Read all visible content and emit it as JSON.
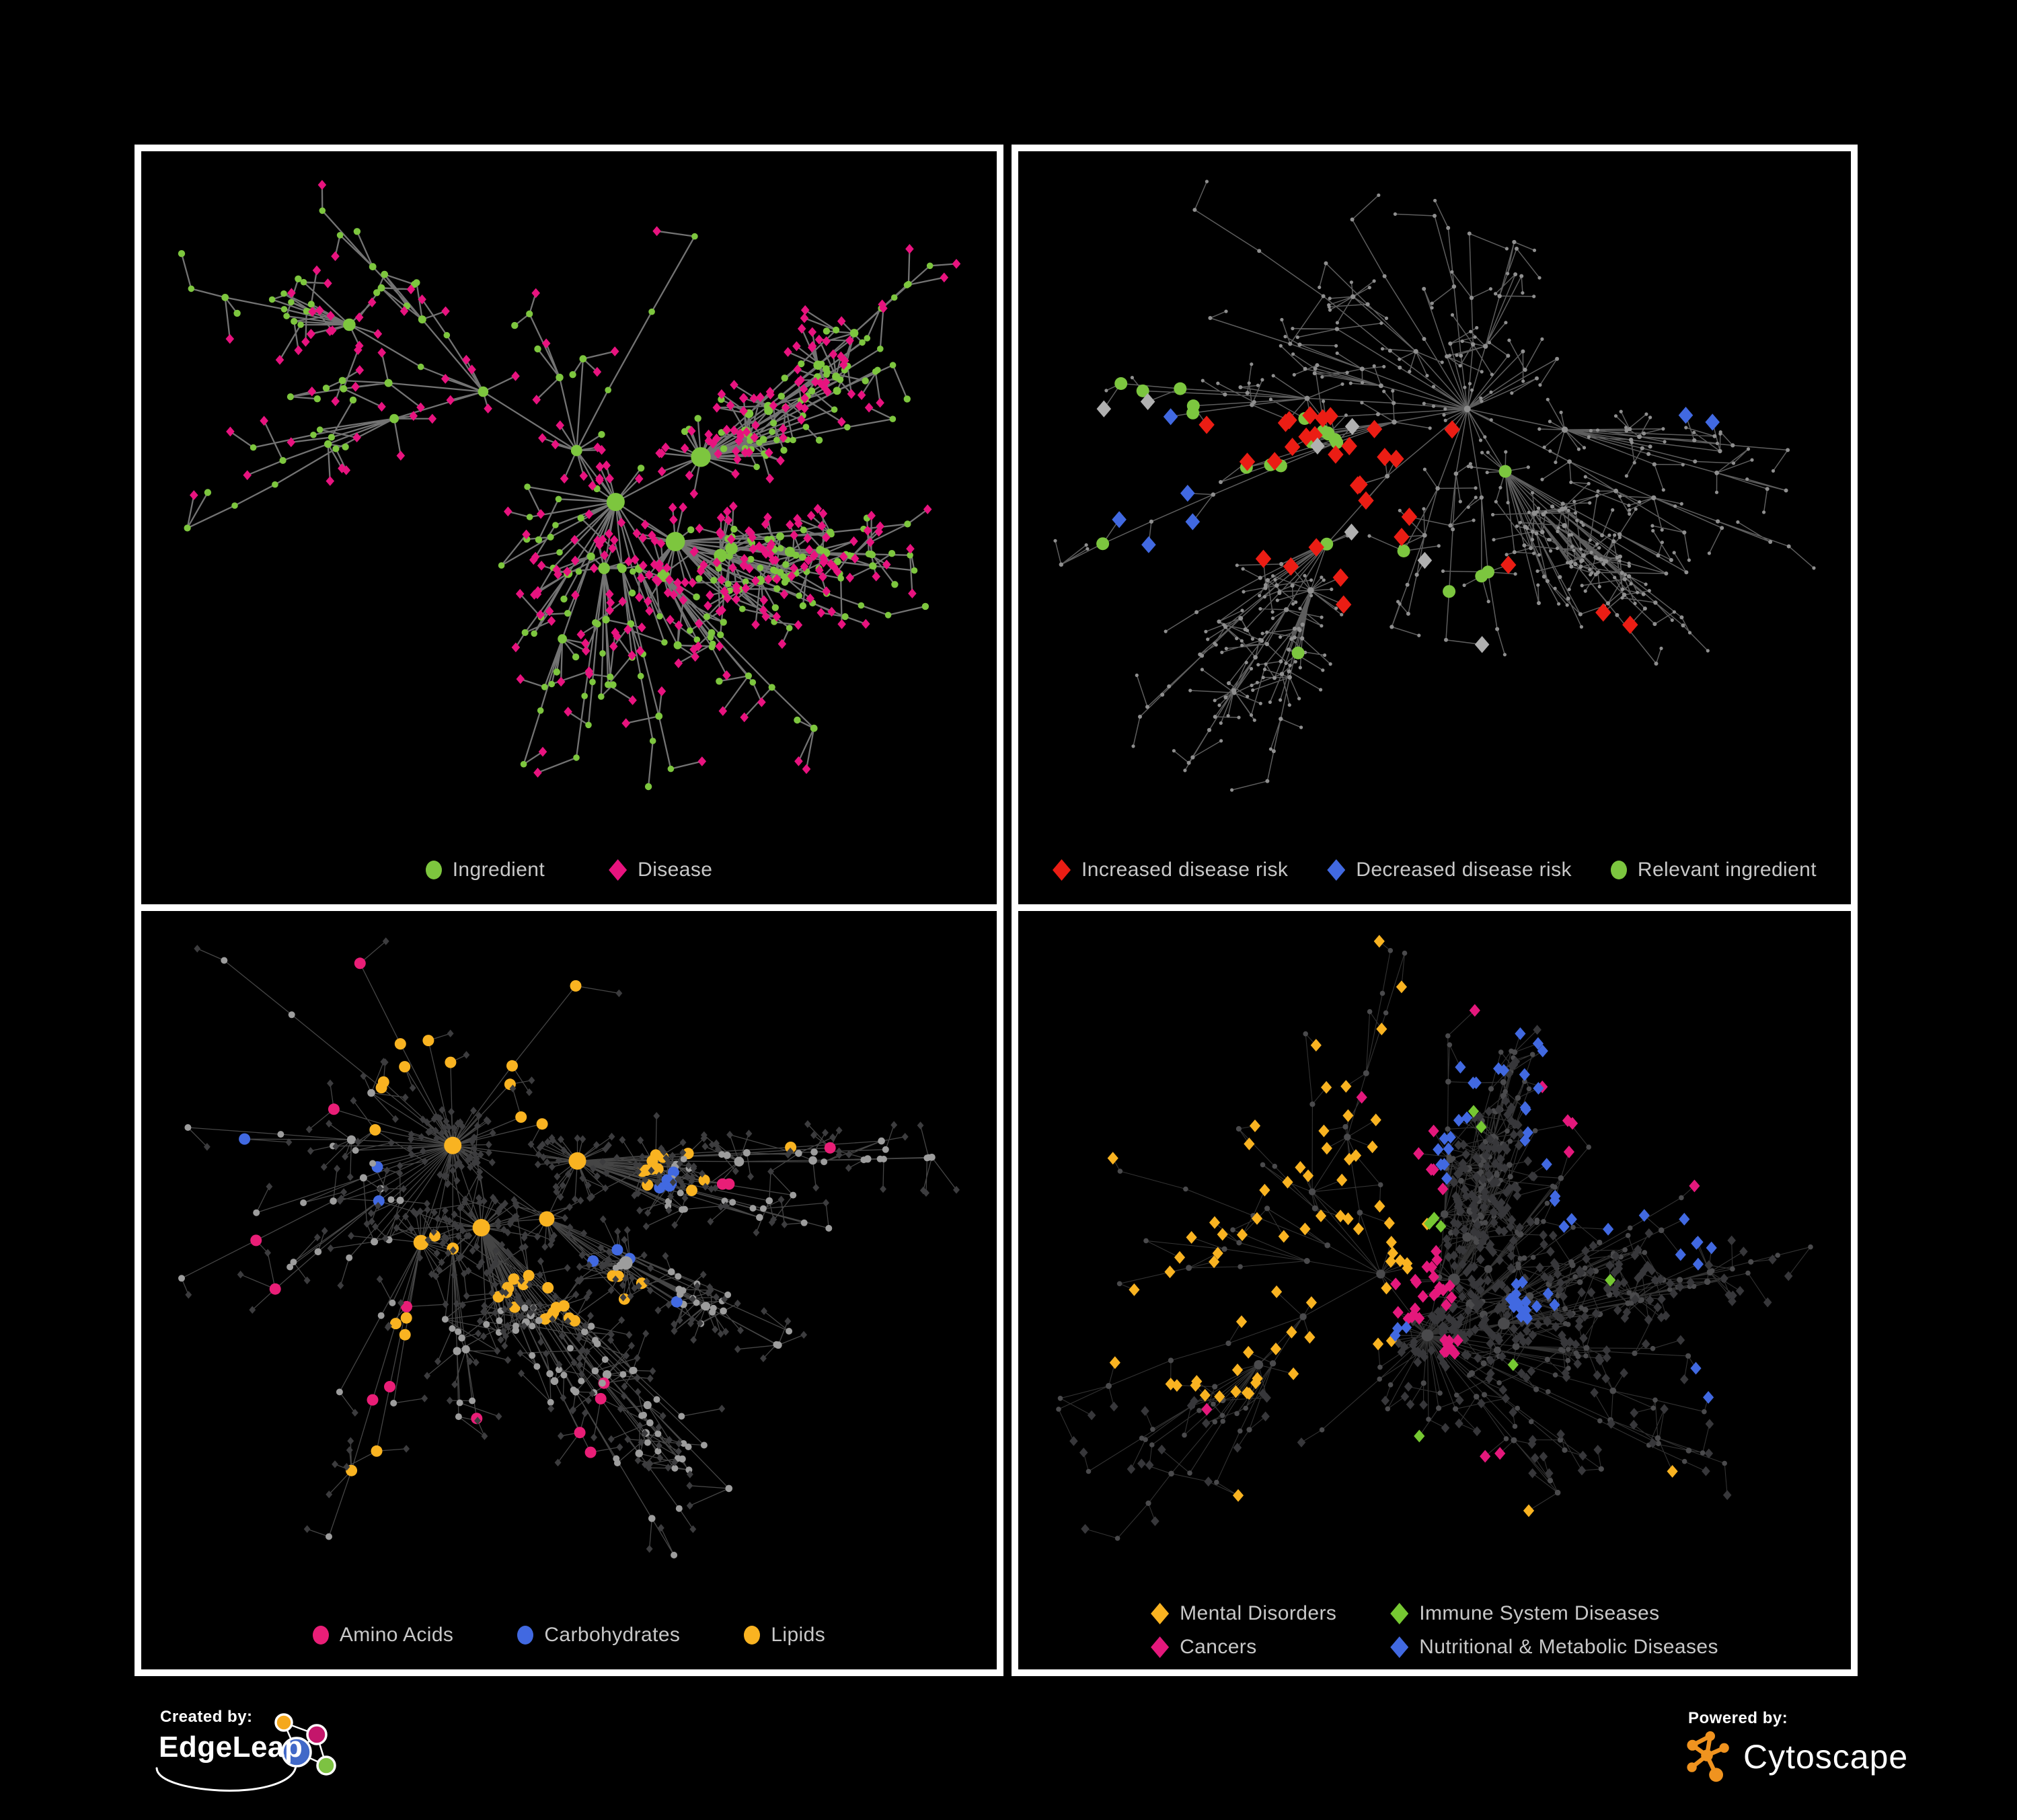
{
  "canvas": {
    "background": "#000000",
    "frame_color": "#ffffff",
    "legend_text_color": "#c8c8c8"
  },
  "footer": {
    "created_by_label": "Created by:",
    "brand": "EdgeLeap",
    "powered_by_label": "Powered by:",
    "engine": "Cytoscape",
    "cytoscape_orange": "#f0931f",
    "edgeleap_colors": {
      "orange": "#f5a81c",
      "magenta": "#c4166b",
      "blue": "#4169c8",
      "green": "#7dc242"
    }
  },
  "panels": [
    {
      "name": "ingredient-disease-network",
      "legend": [
        {
          "label": "Ingredient",
          "shape": "circle",
          "color": "#7dc63e"
        },
        {
          "label": "Disease",
          "shape": "diamond",
          "color": "#e8137f"
        }
      ],
      "net": {
        "seed": 11,
        "nodes": 640,
        "alpha": 1.08,
        "step": 170,
        "decay": 0.85,
        "leafLen": 55,
        "extraEdges": 26,
        "extraDist": 0.07,
        "pad": [
          60,
          50,
          60,
          175
        ],
        "edge": {
          "color": "#797979",
          "width": 2.3,
          "opacity": 0.95
        },
        "style": "typed",
        "typed": {
          "circleColor": "#7dc63e",
          "diamondColor": "#e8137f",
          "rBase": 4.2,
          "rPerDeg": 0.3,
          "rMax": 15,
          "dSize": 7,
          "leafCircleP": 0.17,
          "leafCircleR": 5.2
        }
      }
    },
    {
      "name": "disease-risk-network",
      "legend": [
        {
          "label": "Increased disease risk",
          "shape": "diamond",
          "color": "#eb1d14"
        },
        {
          "label": "Decreased disease risk",
          "shape": "diamond",
          "color": "#4169e1"
        },
        {
          "label": "Relevant ingredient",
          "shape": "circle",
          "color": "#7cc63f"
        }
      ],
      "net": {
        "seed": 29,
        "nodes": 620,
        "alpha": 1.02,
        "step": 185,
        "decay": 0.87,
        "leafLen": 58,
        "extraEdges": 30,
        "extraDist": 0.09,
        "pad": [
          55,
          45,
          55,
          170
        ],
        "edge": {
          "color": "#6d6d6d",
          "width": 1.5,
          "opacity": 0.85
        },
        "style": "dim",
        "dim": {
          "baseColor": "#8f8f8f",
          "leafR": 2.6,
          "rBase": 2.8,
          "rPerDeg": 0.1,
          "rMax": 5
        },
        "groups": [
          {
            "shape": "d",
            "size": 13,
            "color": "#eb1d14",
            "on": "leaf",
            "pts": [
              [
                0.25,
                0.42,
                5
              ],
              [
                0.33,
                0.4,
                6
              ],
              [
                0.38,
                0.5,
                5
              ],
              [
                0.3,
                0.55,
                3
              ],
              [
                0.42,
                0.44,
                3
              ],
              [
                0.47,
                0.57,
                2
              ],
              [
                0.52,
                0.44,
                1
              ],
              [
                0.4,
                0.67,
                2
              ],
              [
                0.58,
                0.63,
                1
              ],
              [
                0.73,
                0.77,
                1
              ],
              [
                0.7,
                0.7,
                1
              ]
            ]
          },
          {
            "shape": "d",
            "size": 12,
            "color": "#4169e1",
            "on": "leaf",
            "pts": [
              [
                0.185,
                0.47,
                2
              ],
              [
                0.16,
                0.54,
                2
              ],
              [
                0.22,
                0.44,
                1
              ],
              [
                0.84,
                0.33,
                2
              ]
            ]
          },
          {
            "shape": "d",
            "size": 12,
            "color": "#b0b0b0",
            "on": "leaf",
            "pts": [
              [
                0.155,
                0.43,
                1
              ],
              [
                0.24,
                0.47,
                1
              ],
              [
                0.345,
                0.47,
                1
              ],
              [
                0.4,
                0.58,
                1
              ],
              [
                0.47,
                0.62,
                1
              ],
              [
                0.56,
                0.73,
                1
              ],
              [
                0.145,
                0.4,
                1
              ]
            ]
          },
          {
            "shape": "c",
            "size": 9.5,
            "color": "#7cc63f",
            "on": "int",
            "pts": [
              [
                0.14,
                0.4,
                2
              ],
              [
                0.17,
                0.37,
                1
              ],
              [
                0.28,
                0.46,
                4
              ],
              [
                0.35,
                0.46,
                6
              ],
              [
                0.38,
                0.56,
                2
              ],
              [
                0.55,
                0.66,
                3
              ],
              [
                0.33,
                0.78,
                1
              ],
              [
                0.12,
                0.63,
                1
              ],
              [
                0.63,
                0.48,
                1
              ],
              [
                0.1,
                0.33,
                2
              ]
            ]
          }
        ]
      }
    },
    {
      "name": "nutrient-class-network",
      "legend": [
        {
          "label": "Amino Acids",
          "shape": "circle",
          "color": "#e91e77"
        },
        {
          "label": "Carbohydrates",
          "shape": "circle",
          "color": "#4169e1"
        },
        {
          "label": "Lipids",
          "shape": "circle",
          "color": "#f9b321"
        }
      ],
      "net": {
        "seed": 47,
        "nodes": 760,
        "alpha": 1.22,
        "step": 175,
        "decay": 0.86,
        "leafLen": 48,
        "extraEdges": 110,
        "extraDist": 0.085,
        "pad": [
          60,
          45,
          60,
          170
        ],
        "edge": {
          "color": "#9a9a9a",
          "width": 1.3,
          "opacity": 0.45
        },
        "style": "typed2",
        "typed2": {
          "circleColor": "#9d9d9d",
          "diamondColor": "#3c3c3e",
          "rBase": 4.5,
          "rPerDeg": 0.26,
          "rMax": 13,
          "dSize": 5.5,
          "hlMinR": 8.5
        },
        "groups": [
          {
            "shape": "c",
            "color": "#f9b321",
            "on": "int",
            "pts": [
              [
                0.46,
                0.37,
                14
              ],
              [
                0.41,
                0.48,
                12
              ],
              [
                0.5,
                0.6,
                7
              ],
              [
                0.57,
                0.57,
                4
              ],
              [
                0.42,
                0.2,
                4
              ],
              [
                0.33,
                0.28,
                3
              ],
              [
                0.63,
                0.22,
                2
              ],
              [
                0.3,
                0.65,
                3
              ],
              [
                0.66,
                0.4,
                2
              ],
              [
                0.2,
                0.8,
                2
              ],
              [
                0.74,
                0.16,
                1
              ],
              [
                0.45,
                0.05,
                2
              ]
            ]
          },
          {
            "shape": "c",
            "color": "#4169e1",
            "on": "int",
            "pts": [
              [
                0.475,
                0.36,
                5
              ],
              [
                0.5,
                0.42,
                3
              ],
              [
                0.36,
                0.33,
                1
              ],
              [
                0.62,
                0.6,
                1
              ],
              [
                0.07,
                0.3,
                1
              ],
              [
                0.25,
                0.42,
                1
              ]
            ]
          },
          {
            "shape": "c",
            "color": "#e91e77",
            "on": "int",
            "pts": [
              [
                0.08,
                0.52,
                1
              ],
              [
                0.14,
                0.6,
                1
              ],
              [
                0.24,
                0.74,
                2
              ],
              [
                0.38,
                0.84,
                1
              ],
              [
                0.47,
                0.88,
                2
              ],
              [
                0.56,
                0.74,
                2
              ],
              [
                0.43,
                0.05,
                1
              ],
              [
                0.2,
                0.28,
                1
              ],
              [
                0.7,
                0.4,
                2
              ],
              [
                0.86,
                0.32,
                1
              ],
              [
                0.3,
                0.55,
                1
              ]
            ]
          }
        ]
      }
    },
    {
      "name": "disease-class-network",
      "legend": [
        {
          "label": "Mental Disorders",
          "shape": "diamond",
          "color": "#f9b321"
        },
        {
          "label": "Immune System Diseases",
          "shape": "diamond",
          "color": "#76c832"
        },
        {
          "label": "Cancers",
          "shape": "diamond",
          "color": "#e4187c"
        },
        {
          "label": "Nutritional & Metabolic Diseases",
          "shape": "diamond",
          "color": "#4169e1"
        }
      ],
      "net": {
        "seed": 61,
        "nodes": 860,
        "alpha": 1.18,
        "step": 170,
        "decay": 0.86,
        "leafLen": 46,
        "extraEdges": 130,
        "extraDist": 0.085,
        "pad": [
          60,
          45,
          60,
          195
        ],
        "edge": {
          "color": "#9a9a9a",
          "width": 1.1,
          "opacity": 0.32
        },
        "style": "dark",
        "dark": {
          "circleColor": "#4a4a4c",
          "rBase": 3.4,
          "rPerDeg": 0.22,
          "rMax": 9,
          "diamondColor": "#37373a",
          "dSize": 7,
          "hlSize": 9
        },
        "groups": [
          {
            "shape": "d",
            "color": "#f9b321",
            "on": "leaf",
            "pts": [
              [
                0.18,
                0.5,
                55
              ],
              [
                0.28,
                0.44,
                8
              ],
              [
                0.32,
                0.1,
                3
              ],
              [
                0.12,
                0.1,
                2
              ],
              [
                0.4,
                0.7,
                2
              ],
              [
                0.3,
                0.92,
                1
              ],
              [
                0.55,
                0.95,
                1
              ],
              [
                0.8,
                0.9,
                1
              ]
            ]
          },
          {
            "shape": "d",
            "color": "#e4187c",
            "on": "leaf",
            "pts": [
              [
                0.465,
                0.57,
                22
              ],
              [
                0.52,
                0.68,
                9
              ],
              [
                0.43,
                0.42,
                4
              ],
              [
                0.37,
                0.3,
                2
              ],
              [
                0.88,
                0.23,
                5
              ],
              [
                0.58,
                0.9,
                2
              ],
              [
                0.23,
                0.76,
                1
              ],
              [
                0.48,
                0.05,
                1
              ]
            ]
          },
          {
            "shape": "d",
            "color": "#4169e1",
            "on": "leaf",
            "pts": [
              [
                0.63,
                0.6,
                16
              ],
              [
                0.72,
                0.42,
                7
              ],
              [
                0.78,
                0.32,
                5
              ],
              [
                0.85,
                0.52,
                5
              ],
              [
                0.68,
                0.24,
                4
              ],
              [
                0.5,
                0.38,
                3
              ],
              [
                0.33,
                0.6,
                3
              ],
              [
                0.18,
                0.27,
                3
              ],
              [
                0.45,
                0.06,
                3
              ],
              [
                0.9,
                0.72,
                2
              ],
              [
                0.06,
                0.07,
                2
              ],
              [
                0.26,
                0.2,
                2
              ],
              [
                0.55,
                0.2,
                2
              ]
            ]
          },
          {
            "shape": "d",
            "color": "#76c832",
            "on": "leaf",
            "pts": [
              [
                0.5,
                0.46,
                2
              ],
              [
                0.56,
                0.32,
                1
              ],
              [
                0.36,
                0.44,
                1
              ],
              [
                0.24,
                0.05,
                1
              ],
              [
                0.61,
                0.71,
                1
              ],
              [
                0.73,
                0.56,
                1
              ],
              [
                0.44,
                0.86,
                1
              ]
            ]
          }
        ]
      }
    }
  ]
}
